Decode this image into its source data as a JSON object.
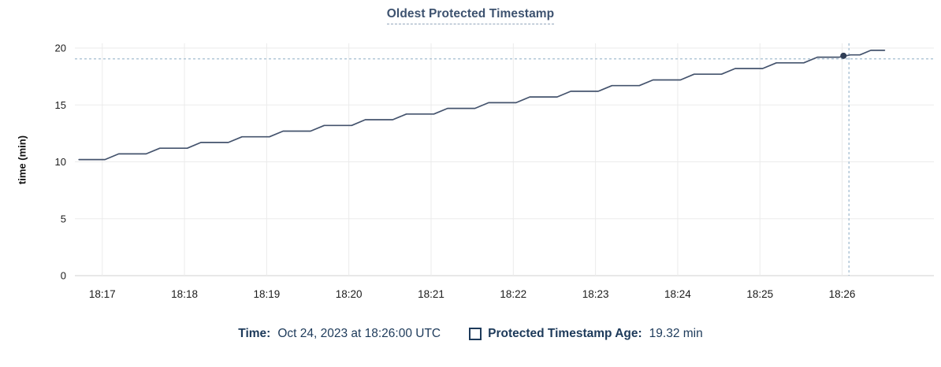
{
  "title": {
    "text": "Oldest Protected Timestamp"
  },
  "y_axis_label": "time (min)",
  "legend": {
    "time_label": "Time:",
    "time_value": "Oct 24, 2023 at 18:26:00 UTC",
    "series_label": "Protected Timestamp Age:",
    "series_value": "19.32 min"
  },
  "colors": {
    "line": "#44536d",
    "marker": "#2e3d55",
    "crosshair": "#a4bdd1",
    "grid": "#ebebeb",
    "axis_baseline": "#d2d2d2",
    "title_text": "#3d526f",
    "title_underline": "#93a7bc",
    "legend_text": "#1d3a5a",
    "tick_text": "#1c1c1c"
  },
  "chart_data": {
    "type": "line",
    "title": "Oldest Protected Timestamp",
    "xlabel": "",
    "ylabel": "time (min)",
    "ylim": [
      0,
      20.6
    ],
    "yticks": [
      0,
      5,
      10,
      15,
      20
    ],
    "grid": true,
    "legend_position": "bottom",
    "x_tick_labels": [
      "18:17",
      "18:18",
      "18:19",
      "18:20",
      "18:21",
      "18:22",
      "18:23",
      "18:24",
      "18:25",
      "18:26"
    ],
    "x_domain_seconds": [
      0,
      627
    ],
    "x_domain_start_time": "18:16:40",
    "x_first_tick_second": 20,
    "x_tick_interval_seconds": 60,
    "series": [
      {
        "name": "Protected Timestamp Age",
        "unit": "min",
        "points_t_v": [
          [
            3,
            10.2
          ],
          [
            22,
            10.2
          ],
          [
            32,
            10.7
          ],
          [
            52,
            10.7
          ],
          [
            62,
            11.2
          ],
          [
            82,
            11.2
          ],
          [
            92,
            11.7
          ],
          [
            112,
            11.7
          ],
          [
            122,
            12.2
          ],
          [
            142,
            12.2
          ],
          [
            152,
            12.7
          ],
          [
            172,
            12.7
          ],
          [
            182,
            13.2
          ],
          [
            202,
            13.2
          ],
          [
            212,
            13.7
          ],
          [
            232,
            13.7
          ],
          [
            242,
            14.2
          ],
          [
            262,
            14.2
          ],
          [
            272,
            14.7
          ],
          [
            292,
            14.7
          ],
          [
            302,
            15.2
          ],
          [
            322,
            15.2
          ],
          [
            332,
            15.7
          ],
          [
            352,
            15.7
          ],
          [
            362,
            16.2
          ],
          [
            382,
            16.2
          ],
          [
            392,
            16.7
          ],
          [
            412,
            16.7
          ],
          [
            422,
            17.2
          ],
          [
            442,
            17.2
          ],
          [
            452,
            17.7
          ],
          [
            472,
            17.7
          ],
          [
            482,
            18.2
          ],
          [
            502,
            18.2
          ],
          [
            512,
            18.7
          ],
          [
            532,
            18.7
          ],
          [
            542,
            19.2
          ],
          [
            558,
            19.2
          ],
          [
            566,
            19.4
          ],
          [
            573,
            19.4
          ],
          [
            581,
            19.8
          ],
          [
            591,
            19.8
          ]
        ]
      }
    ],
    "hover": {
      "time": "Oct 24, 2023 at 18:26:00 UTC",
      "crosshair_t": 565,
      "crosshair_value": 19.05,
      "marker_t": 561,
      "marker_value": 19.32,
      "marker_display_value": "19.32 min"
    }
  }
}
